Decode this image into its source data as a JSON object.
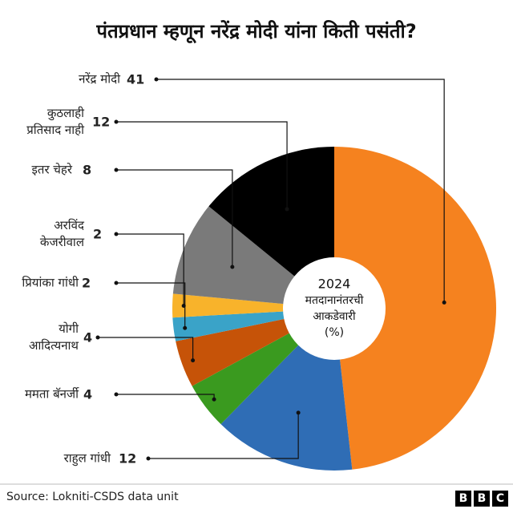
{
  "chart_data": {
    "type": "pie",
    "title": "पंतप्रधान म्हणून नरेंद्र मोदी यांना किती पसंती?",
    "center_label": [
      "2024",
      "मतदानानंतरची",
      "आकडेवारी",
      "(%)"
    ],
    "categories": [
      "नरेंद्र मोदी",
      "राहुल गांधी",
      "ममता बॅनर्जी",
      "योगी आदित्यनाथ",
      "प्रियांका गांधी",
      "अरविंद केजरीवाल",
      "इतर चेहरे",
      "कुठलाही प्रतिसाद नाही"
    ],
    "values": [
      41,
      12,
      4,
      4,
      2,
      2,
      8,
      12
    ],
    "colors": [
      "#f5821f",
      "#2f6db5",
      "#3a9a1f",
      "#c65308",
      "#3aa3c8",
      "#f8b32b",
      "#7a7a7a",
      "#000000"
    ],
    "source": "Source: Lokniti-CSDS data unit",
    "logo": [
      "B",
      "B",
      "C"
    ]
  }
}
